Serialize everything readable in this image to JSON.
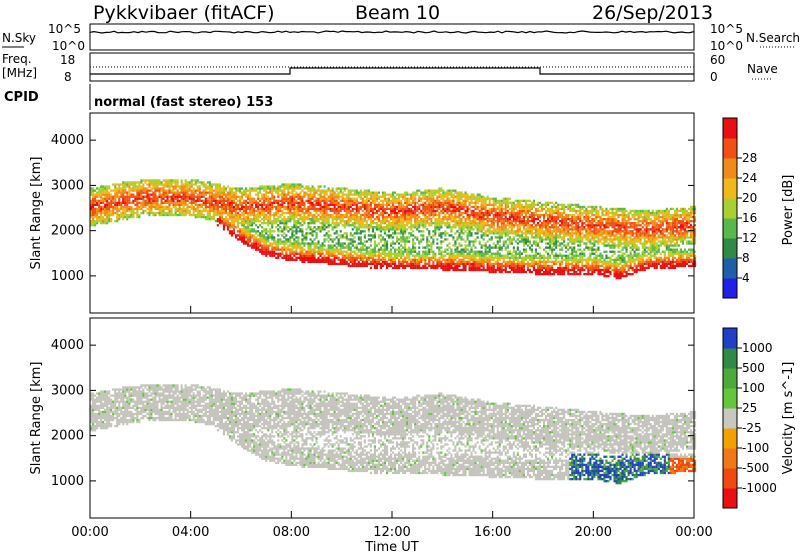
{
  "header": {
    "radar": "Pykkvibaer (fitACF)",
    "beam": "Beam 10",
    "date": "26/Sep/2013"
  },
  "status_panels": {
    "nsky_label": "N.Sky",
    "nsky_ticks": [
      "10^5",
      "10^0"
    ],
    "nsearch_label": "N.Search",
    "nsearch_ticks": [
      "10^5",
      "10^0"
    ],
    "freq_label": "Freq.",
    "freq_unit": "[MHz]",
    "freq_ticks": [
      "18",
      "8"
    ],
    "nave_label": "Nave",
    "nave_ticks": [
      "60",
      "0"
    ],
    "cpid_label": "CPID",
    "cpid_text": "normal (fast stereo) 153"
  },
  "chart_data": [
    {
      "type": "heatmap",
      "name": "power",
      "ylabel": "Slant Range [km]",
      "ylim": [
        180,
        4600
      ],
      "yticks": [
        1000,
        2000,
        3000,
        4000
      ],
      "xlim": [
        0,
        24
      ],
      "colorbar": {
        "label": "Power [dB]",
        "range": [
          0,
          32
        ],
        "ticks": [
          4,
          8,
          12,
          16,
          20,
          24,
          28
        ],
        "colors": [
          "#2020e8",
          "#1f5fa8",
          "#2e8a46",
          "#58b84a",
          "#a8d030",
          "#f2b81a",
          "#f08a18",
          "#f05016",
          "#e81010"
        ]
      },
      "features": [
        {
          "label": "upper band",
          "points": [
            [
              0,
              2500
            ],
            [
              2,
              2700
            ],
            [
              4,
              2700
            ],
            [
              6,
              2500
            ],
            [
              8,
              2600
            ],
            [
              10,
              2500
            ],
            [
              12,
              2400
            ],
            [
              14,
              2500
            ],
            [
              16,
              2300
            ],
            [
              18,
              2200
            ],
            [
              20,
              2100
            ],
            [
              22,
              2000
            ],
            [
              24,
              2100
            ]
          ]
        },
        {
          "label": "lower band",
          "points": [
            [
              5,
              2200
            ],
            [
              6,
              1800
            ],
            [
              7,
              1500
            ],
            [
              8,
              1400
            ],
            [
              10,
              1300
            ],
            [
              12,
              1200
            ],
            [
              14,
              1200
            ],
            [
              16,
              1150
            ],
            [
              18,
              1100
            ],
            [
              20,
              1100
            ],
            [
              21,
              1000
            ],
            [
              22,
              1200
            ],
            [
              23.5,
              1250
            ]
          ]
        }
      ]
    },
    {
      "type": "heatmap",
      "name": "velocity",
      "ylabel": "Slant Range [km]",
      "ylim": [
        180,
        4600
      ],
      "yticks": [
        1000,
        2000,
        3000,
        4000
      ],
      "xlim": [
        0,
        24
      ],
      "xticks": [
        "00:00",
        "04:00",
        "08:00",
        "12:00",
        "16:00",
        "20:00",
        "00:00"
      ],
      "xlabel": "Time UT",
      "colorbar": {
        "label": "Velocity [m s^-1]",
        "ticks": [
          "1000",
          "500",
          "100",
          "25",
          "-25",
          "-100",
          "-500",
          "-1000"
        ],
        "colors": [
          "#2040c8",
          "#2e8a46",
          "#4caa3a",
          "#62c83a",
          "#c8c8c0",
          "#f0a000",
          "#f07818",
          "#f04a10",
          "#e81010"
        ]
      }
    }
  ],
  "colors": {
    "ground_grey": "#c4c4bc"
  }
}
